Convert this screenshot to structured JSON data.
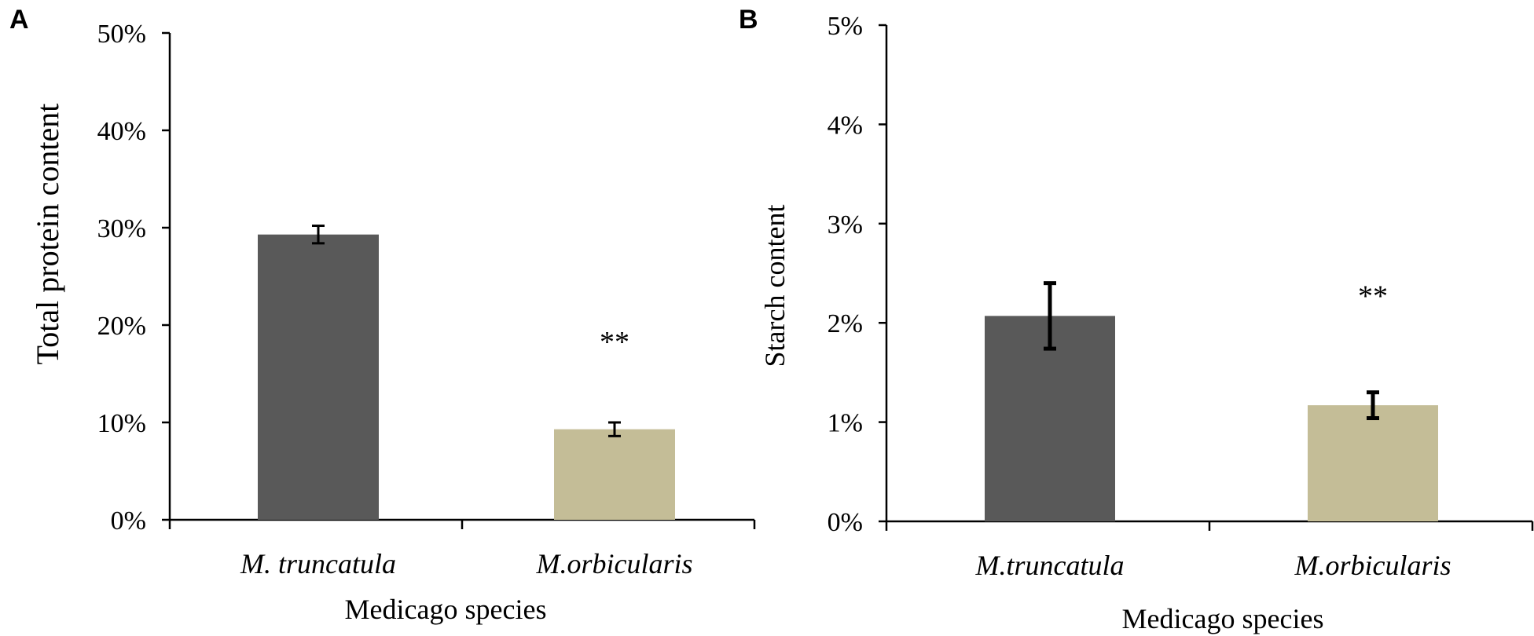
{
  "chart_data": [
    {
      "panel": "A",
      "type": "bar",
      "categories": [
        "M. truncatula",
        "M.orbicularis"
      ],
      "values": [
        0.293,
        0.093
      ],
      "errors": [
        0.009,
        0.007
      ],
      "bar_colors": [
        "#595959",
        "#c4bd97"
      ],
      "significance": [
        "",
        "**"
      ],
      "ylim": [
        0,
        0.5
      ],
      "yticks": [
        0,
        0.1,
        0.2,
        0.3,
        0.4,
        0.5
      ],
      "ytick_labels": [
        "0%",
        "10%",
        "20%",
        "30%",
        "40%",
        "50%"
      ],
      "xlabel": "Medicago species",
      "ylabel": "Total  protein content"
    },
    {
      "panel": "B",
      "type": "bar",
      "categories": [
        "M.truncatula",
        "M.orbicularis"
      ],
      "values": [
        0.0207,
        0.0117
      ],
      "errors": [
        0.0033,
        0.0013
      ],
      "bar_colors": [
        "#595959",
        "#c4bd97"
      ],
      "significance": [
        "",
        "**"
      ],
      "ylim": [
        0,
        0.05
      ],
      "yticks": [
        0,
        0.01,
        0.02,
        0.03,
        0.04,
        0.05
      ],
      "ytick_labels": [
        "0%",
        "1%",
        "2%",
        "3%",
        "4%",
        "5%"
      ],
      "xlabel": "Medicago species",
      "ylabel": "Starch content"
    }
  ]
}
